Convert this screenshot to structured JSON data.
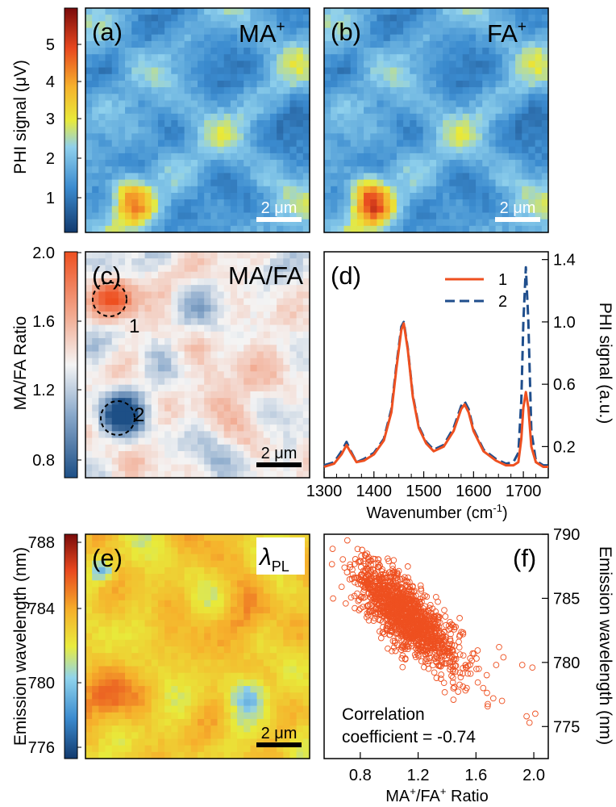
{
  "colors": {
    "orange": "#ee5020",
    "navy": "#1f4e8c"
  },
  "panels": {
    "a": {
      "label": "(a)",
      "ion": "MA",
      "sup": "+",
      "scale": "2 μm"
    },
    "b": {
      "label": "(b)",
      "ion": "FA",
      "sup": "+",
      "scale": "2 μm"
    },
    "c": {
      "label": "(c)",
      "tag": "MA/FA",
      "scale": "2 μm",
      "region1": "1",
      "region2": "2"
    },
    "d": {
      "label": "(d)"
    },
    "e": {
      "label": "(e)",
      "lam": "λ",
      "lam_sub": "PL",
      "scale": "2 μm"
    },
    "f": {
      "label": "(f)",
      "corr1": "Correlation",
      "corr2": "coefficient = -0.74"
    }
  },
  "colorbars": {
    "phi": {
      "label": "PHI signal (μV)",
      "ticks": [
        "1",
        "2",
        "3",
        "4",
        "5"
      ]
    },
    "ratio": {
      "label": "MA/FA Ratio",
      "ticks": [
        "0.8",
        "1.2",
        "1.6",
        "2.0"
      ]
    },
    "emission": {
      "label": "Emission wavelength (nm)",
      "ticks": [
        "776",
        "780",
        "784",
        "788"
      ]
    }
  },
  "chart_data": [
    {
      "panel": "d",
      "type": "line",
      "xlabel": "Wavenumber (cm",
      "xlabel_sup": "-1",
      "xlabel_end": ")",
      "ylabel": "PHI signal (a.u.)",
      "xlim": [
        1300,
        1750
      ],
      "ylim": [
        0,
        1.45
      ],
      "xticks": [
        "1300",
        "1400",
        "1500",
        "1600",
        "1700"
      ],
      "yticks": [
        "0.2",
        "0.6",
        "1.0",
        "1.4"
      ],
      "legend": {
        "position": "top-right"
      },
      "series": [
        {
          "name": "1",
          "color": "#ee5020",
          "x": [
            1300,
            1320,
            1335,
            1345,
            1352,
            1365,
            1380,
            1400,
            1420,
            1435,
            1445,
            1455,
            1460,
            1468,
            1478,
            1490,
            1505,
            1520,
            1540,
            1560,
            1575,
            1582,
            1590,
            1600,
            1620,
            1645,
            1665,
            1680,
            1690,
            1696,
            1700,
            1705,
            1710,
            1716,
            1725,
            1740,
            1750
          ],
          "y": [
            0.07,
            0.09,
            0.15,
            0.21,
            0.17,
            0.1,
            0.11,
            0.15,
            0.24,
            0.42,
            0.7,
            0.95,
            0.99,
            0.82,
            0.52,
            0.32,
            0.22,
            0.17,
            0.2,
            0.3,
            0.44,
            0.47,
            0.42,
            0.3,
            0.17,
            0.11,
            0.08,
            0.08,
            0.1,
            0.25,
            0.45,
            0.55,
            0.45,
            0.2,
            0.1,
            0.07,
            0.07
          ]
        },
        {
          "name": "2",
          "color": "#1f4e8c",
          "x": [
            1300,
            1320,
            1335,
            1345,
            1352,
            1365,
            1380,
            1400,
            1420,
            1435,
            1445,
            1455,
            1460,
            1468,
            1478,
            1490,
            1505,
            1520,
            1540,
            1560,
            1575,
            1582,
            1590,
            1600,
            1620,
            1645,
            1665,
            1680,
            1690,
            1696,
            1700,
            1705,
            1710,
            1716,
            1725,
            1740,
            1750
          ],
          "y": [
            0.08,
            0.1,
            0.17,
            0.23,
            0.18,
            0.1,
            0.12,
            0.16,
            0.25,
            0.44,
            0.72,
            0.97,
            1.0,
            0.83,
            0.53,
            0.33,
            0.23,
            0.18,
            0.21,
            0.32,
            0.46,
            0.49,
            0.44,
            0.31,
            0.18,
            0.12,
            0.09,
            0.1,
            0.16,
            0.5,
            1.0,
            1.35,
            1.0,
            0.3,
            0.11,
            0.08,
            0.08
          ]
        }
      ]
    },
    {
      "panel": "f",
      "type": "scatter",
      "xlabel": "MA",
      "xlabel_sup1": "+",
      "xlabel_mid": "/FA",
      "xlabel_sup2": "+",
      "xlabel_end": " Ratio",
      "ylabel": "Emission wavelength (nm)",
      "xlim": [
        0.55,
        2.1
      ],
      "ylim": [
        772.5,
        790
      ],
      "xticks": [
        "0.8",
        "1.2",
        "1.6",
        "2.0"
      ],
      "yticks": [
        "775",
        "780",
        "785",
        "790"
      ],
      "color": "#ee5020",
      "correlation": -0.74,
      "cloud": {
        "n": 1400,
        "x_mean": 1.12,
        "x_sd": 0.18,
        "slope": -9.0,
        "y_at_mean": 783.6,
        "y_sd": 1.3
      },
      "outliers": [
        [
          1.62,
          779.5
        ],
        [
          1.65,
          778.0
        ],
        [
          1.72,
          777.2
        ],
        [
          1.74,
          779.8
        ],
        [
          1.76,
          781.2
        ],
        [
          1.78,
          777.0
        ],
        [
          1.79,
          780.4
        ],
        [
          1.92,
          779.8
        ],
        [
          1.95,
          775.8
        ],
        [
          1.97,
          775.3
        ],
        [
          1.99,
          779.6
        ],
        [
          2.01,
          776.0
        ]
      ]
    }
  ]
}
